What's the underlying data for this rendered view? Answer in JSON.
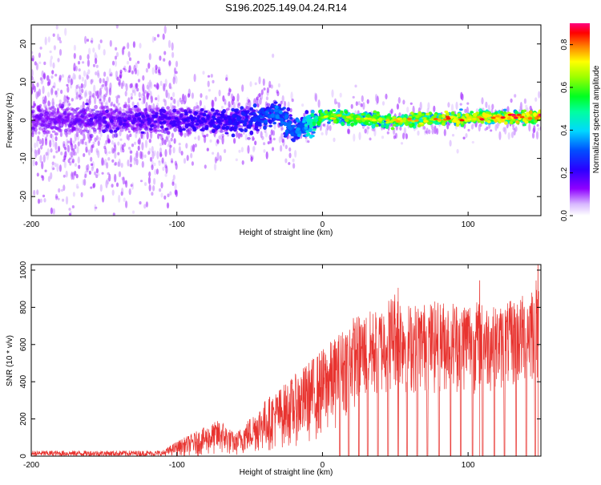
{
  "title": "S196.2025.149.04.24.R14",
  "colors": {
    "snr_line": "#e8332f",
    "spectrogram_low": "#8f00ff",
    "spectrogram_high": "#ff0000"
  },
  "chart_data": [
    {
      "type": "heatmap",
      "name": "spectrogram",
      "xlabel": "Height of straight line (km)",
      "ylabel": "Frequency (Hz)",
      "xlim": [
        -200,
        150
      ],
      "ylim": [
        -25,
        25
      ],
      "xticks": [
        -200,
        -100,
        0,
        100
      ],
      "yticks": [
        -20,
        -10,
        0,
        10,
        20
      ],
      "colorbar": {
        "label": "Normalized spectral amplitude",
        "range": [
          0,
          0.9
        ],
        "ticks": [
          0.0,
          0.2,
          0.4,
          0.6,
          0.8
        ],
        "colormap": "rainbow"
      },
      "ridge": {
        "x": [
          -200,
          -150,
          -100,
          -50,
          -30,
          -20,
          0,
          50,
          100,
          150
        ],
        "freq_center": [
          0,
          0,
          0,
          0,
          2,
          -3,
          1,
          0,
          0.5,
          1
        ],
        "amplitude": [
          0.15,
          0.18,
          0.2,
          0.25,
          0.35,
          0.3,
          0.6,
          0.65,
          0.7,
          0.75
        ]
      }
    },
    {
      "type": "line",
      "name": "snr",
      "xlabel": "Height of straight line (km)",
      "ylabel": "SNR (10 * v/v)",
      "xlim": [
        -200,
        150
      ],
      "ylim": [
        0,
        1030
      ],
      "xticks": [
        -200,
        -100,
        0,
        100
      ],
      "yticks": [
        0,
        200,
        400,
        600,
        800,
        1000
      ],
      "envelope": {
        "x": [
          -200,
          -110,
          -100,
          -70,
          -60,
          -40,
          -20,
          0,
          10,
          20,
          40,
          50,
          60,
          100,
          120,
          140,
          148
        ],
        "upper": [
          30,
          30,
          80,
          200,
          120,
          300,
          430,
          580,
          650,
          750,
          800,
          900,
          820,
          850,
          800,
          880,
          1030
        ],
        "lower": [
          0,
          0,
          0,
          0,
          0,
          20,
          50,
          80,
          150,
          250,
          300,
          350,
          320,
          330,
          340,
          350,
          400
        ]
      },
      "dropouts": [
        12,
        18,
        25,
        31,
        38,
        45,
        52,
        58,
        65,
        72,
        80,
        88,
        95,
        103,
        110,
        118,
        125,
        133,
        140,
        146
      ],
      "peaks": [
        {
          "x": 52,
          "y": 905
        },
        {
          "x": 108,
          "y": 945
        },
        {
          "x": 148,
          "y": 1030
        }
      ]
    }
  ]
}
